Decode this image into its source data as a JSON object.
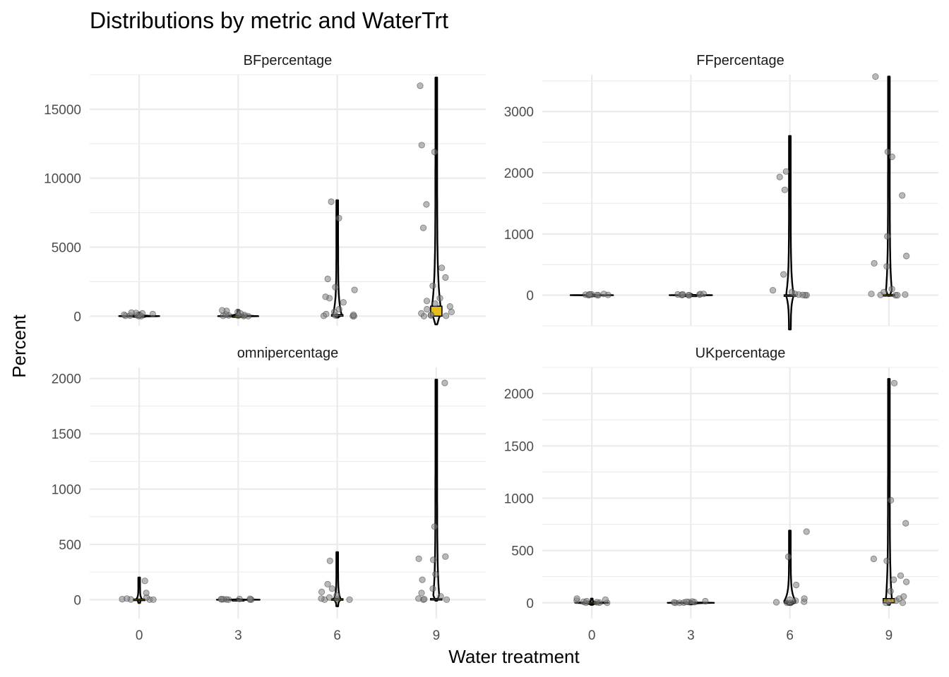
{
  "chart_data": {
    "type": "violin",
    "title": "Distributions by metric and WaterTrt",
    "xlabel": "Water treatment",
    "ylabel": "Percent",
    "categories": [
      "0",
      "3",
      "6",
      "9"
    ],
    "colors": {
      "violin": "#000000",
      "box_fill": "#E5BE1B",
      "points": "#808080"
    },
    "panels": [
      {
        "name": "BFpercentage",
        "ylim": [
          -700,
          17500
        ],
        "yticks": [
          0,
          5000,
          10000,
          15000
        ],
        "groups": [
          {
            "x": "0",
            "range": [
              -50,
              260
            ],
            "width": 0.45,
            "box": [
              0,
              30
            ],
            "points": [
              0,
              10,
              20,
              40,
              60,
              80,
              100,
              150,
              200,
              230,
              250
            ]
          },
          {
            "x": "3",
            "range": [
              -80,
              450
            ],
            "width": 0.4,
            "box": [
              0,
              25
            ],
            "points": [
              0,
              10,
              20,
              30,
              50,
              80,
              120,
              200,
              300,
              380,
              420
            ]
          },
          {
            "x": "6",
            "range": [
              -100,
              8400
            ],
            "width": 0.08,
            "box": [
              0,
              110
            ],
            "points": [
              0,
              0,
              20,
              50,
              100,
              150,
              300,
              500,
              1000,
              1300,
              1400,
              1900,
              2100,
              2700,
              7100,
              8300
            ]
          },
          {
            "x": "9",
            "range": [
              -600,
              17300
            ],
            "width": 0.1,
            "box": [
              0,
              720
            ],
            "points": [
              0,
              20,
              50,
              100,
              200,
              300,
              500,
              700,
              900,
              1100,
              1300,
              2200,
              2800,
              3500,
              6400,
              8100,
              11900,
              12400,
              16700
            ]
          }
        ]
      },
      {
        "name": "FFpercentage",
        "ylim": [
          -500,
          3600
        ],
        "yticks": [
          0,
          1000,
          2000,
          3000
        ],
        "groups": [
          {
            "x": "0",
            "range": [
              -10,
              20
            ],
            "width": 0.45,
            "box": [
              0,
              2
            ],
            "points": [
              0,
              0,
              2,
              5,
              8,
              10,
              12,
              15,
              20
            ]
          },
          {
            "x": "3",
            "range": [
              -10,
              20
            ],
            "width": 0.45,
            "box": [
              0,
              2
            ],
            "points": [
              0,
              0,
              3,
              6,
              9,
              12,
              15,
              18,
              20
            ]
          },
          {
            "x": "6",
            "range": [
              -560,
              2600
            ],
            "width": 0.06,
            "box": [
              0,
              5
            ],
            "points": [
              0,
              0,
              5,
              10,
              20,
              50,
              80,
              340,
              1720,
              1930,
              2020
            ]
          },
          {
            "x": "9",
            "range": [
              -10,
              3570
            ],
            "width": 0.05,
            "box": [
              0,
              10
            ],
            "points": [
              0,
              0,
              5,
              10,
              20,
              50,
              100,
              470,
              520,
              640,
              960,
              1630,
              2260,
              2340,
              3570
            ]
          }
        ]
      },
      {
        "name": "omnipercentage",
        "ylim": [
          -170,
          2100
        ],
        "yticks": [
          0,
          500,
          1000,
          1500,
          2000
        ],
        "groups": [
          {
            "x": "0",
            "range": [
              -30,
              200
            ],
            "width": 0.05,
            "box": [
              0,
              5
            ],
            "points": [
              0,
              0,
              2,
              5,
              10,
              20,
              60,
              170
            ]
          },
          {
            "x": "3",
            "range": [
              -5,
              8
            ],
            "width": 0.45,
            "box": [
              0,
              1
            ],
            "points": [
              0,
              0,
              1,
              2,
              3,
              4,
              5,
              6,
              8
            ]
          },
          {
            "x": "6",
            "range": [
              -60,
              430
            ],
            "width": 0.06,
            "box": [
              0,
              8
            ],
            "points": [
              0,
              0,
              5,
              10,
              20,
              40,
              70,
              100,
              140,
              350
            ]
          },
          {
            "x": "9",
            "range": [
              -10,
              1990
            ],
            "width": 0.05,
            "box": [
              0,
              10
            ],
            "points": [
              0,
              0,
              5,
              10,
              30,
              60,
              100,
              180,
              230,
              360,
              370,
              390,
              660,
              1960
            ]
          }
        ]
      },
      {
        "name": "UKpercentage",
        "ylim": [
          -150,
          2250
        ],
        "yticks": [
          0,
          500,
          1000,
          1500,
          2000
        ],
        "groups": [
          {
            "x": "0",
            "range": [
              -20,
              40
            ],
            "width": 0.35,
            "box": [
              0,
              5
            ],
            "points": [
              0,
              0,
              2,
              5,
              10,
              15,
              20,
              30,
              40
            ]
          },
          {
            "x": "3",
            "range": [
              -15,
              15
            ],
            "width": 0.45,
            "box": [
              0,
              3
            ],
            "points": [
              0,
              0,
              2,
              4,
              6,
              8,
              10,
              12,
              15
            ]
          },
          {
            "x": "6",
            "range": [
              -20,
              690
            ],
            "width": 0.12,
            "box": [
              0,
              15
            ],
            "points": [
              0,
              0,
              5,
              10,
              20,
              30,
              40,
              170,
              440,
              680
            ]
          },
          {
            "x": "9",
            "range": [
              -20,
              2140
            ],
            "width": 0.05,
            "box": [
              0,
              40
            ],
            "points": [
              0,
              0,
              10,
              20,
              40,
              60,
              110,
              200,
              220,
              260,
              400,
              420,
              760,
              980,
              2100
            ]
          }
        ]
      }
    ]
  }
}
